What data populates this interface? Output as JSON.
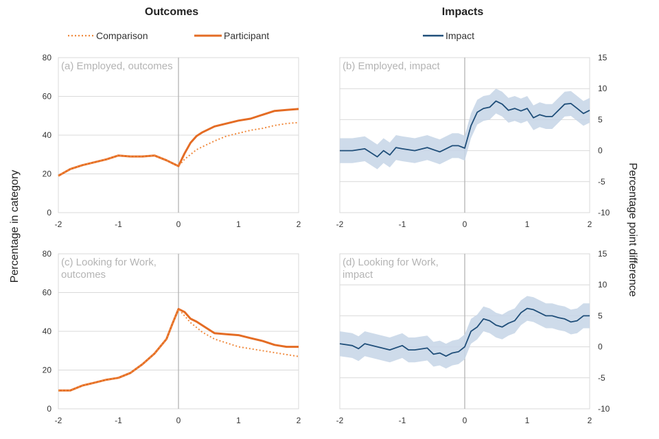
{
  "headings": {
    "outcomes": "Outcomes",
    "impacts": "Impacts"
  },
  "legend": {
    "comparison": "Comparison",
    "participant": "Participant",
    "impact": "Impact"
  },
  "axis_labels": {
    "left": "Percentage in category",
    "right": "Percentage point difference"
  },
  "colors": {
    "participant": "#e46c24",
    "comparison": "#f08a3e",
    "impact": "#1f4e79",
    "band": "#c5d5e6",
    "grid": "#d9d9d9",
    "zero": "#b3b3b3"
  },
  "chart_data": [
    {
      "type": "line",
      "title": "(a) Employed, outcomes",
      "xlim": [
        -2,
        2
      ],
      "xticks": [
        -2,
        -1,
        0,
        1,
        2
      ],
      "ylim": [
        0,
        80
      ],
      "yticks": [
        0,
        20,
        40,
        60,
        80
      ],
      "grid": true,
      "yaxis_side": "left",
      "series": [
        {
          "name": "Participant",
          "style": "solid",
          "x": [
            -2,
            -1.8,
            -1.6,
            -1.4,
            -1.2,
            -1,
            -0.8,
            -0.6,
            -0.4,
            -0.2,
            0,
            0.1,
            0.2,
            0.3,
            0.4,
            0.6,
            0.8,
            1,
            1.2,
            1.4,
            1.6,
            1.8,
            2
          ],
          "y": [
            19,
            22.5,
            24.5,
            26,
            27.5,
            29.5,
            29,
            29,
            29.5,
            27,
            24,
            30.5,
            36,
            39.5,
            41.5,
            44.5,
            46,
            47.5,
            48.5,
            50.5,
            52.5,
            53,
            53.5
          ]
        },
        {
          "name": "Comparison",
          "style": "dotted",
          "x": [
            -2,
            -1.8,
            -1.6,
            -1.4,
            -1.2,
            -1,
            -0.8,
            -0.6,
            -0.4,
            -0.2,
            0,
            0.1,
            0.2,
            0.3,
            0.4,
            0.6,
            0.8,
            1,
            1.2,
            1.4,
            1.6,
            1.8,
            2
          ],
          "y": [
            19,
            22.5,
            24.5,
            26,
            27.5,
            29.5,
            29,
            29,
            29.5,
            27,
            24,
            27.5,
            30,
            32.5,
            34,
            37,
            39.5,
            41,
            42.5,
            43.5,
            45,
            46,
            46.5
          ]
        }
      ]
    },
    {
      "type": "line",
      "title": "(b) Employed, impact",
      "xlim": [
        -2,
        2
      ],
      "xticks": [
        -2,
        -1,
        0,
        1,
        2
      ],
      "ylim": [
        -10,
        15
      ],
      "yticks": [
        -10,
        -5,
        0,
        5,
        10,
        15
      ],
      "grid": true,
      "yaxis_side": "right",
      "series": [
        {
          "name": "Impact",
          "style": "solid",
          "band": true,
          "x": [
            -2,
            -1.8,
            -1.6,
            -1.4,
            -1.3,
            -1.2,
            -1.1,
            -1,
            -0.8,
            -0.6,
            -0.4,
            -0.2,
            -0.1,
            0,
            0.1,
            0.2,
            0.3,
            0.4,
            0.5,
            0.6,
            0.7,
            0.8,
            0.9,
            1,
            1.1,
            1.2,
            1.3,
            1.4,
            1.6,
            1.7,
            1.8,
            1.9,
            2
          ],
          "y": [
            0,
            0,
            0.3,
            -1,
            0,
            -0.7,
            0.5,
            0.3,
            0,
            0.5,
            -0.2,
            0.8,
            0.8,
            0.4,
            4,
            6.2,
            6.8,
            7,
            8,
            7.5,
            6.5,
            6.8,
            6.4,
            6.8,
            5.3,
            5.8,
            5.5,
            5.5,
            7.5,
            7.6,
            6.8,
            6,
            6.5
          ],
          "lower": [
            -2,
            -2,
            -1.7,
            -3,
            -2,
            -2.7,
            -1.5,
            -1.7,
            -2,
            -1.5,
            -2.2,
            -1.2,
            -1.2,
            -1.6,
            2,
            4.2,
            4.8,
            5,
            6,
            5.5,
            4.5,
            4.8,
            4.4,
            4.8,
            3.3,
            3.8,
            3.5,
            3.5,
            5.5,
            5.6,
            4.8,
            4,
            4.5
          ],
          "upper": [
            2,
            2,
            2.3,
            1,
            2,
            1.3,
            2.5,
            2.3,
            2,
            2.5,
            1.8,
            2.8,
            2.8,
            2.4,
            6,
            8.2,
            8.8,
            9,
            10,
            9.5,
            8.5,
            8.8,
            8.4,
            8.8,
            7.3,
            7.8,
            7.5,
            7.5,
            9.5,
            9.6,
            8.8,
            8,
            8.5
          ]
        }
      ]
    },
    {
      "type": "line",
      "title": "(c) Looking for Work, outcomes",
      "xlim": [
        -2,
        2
      ],
      "xticks": [
        -2,
        -1,
        0,
        1,
        2
      ],
      "ylim": [
        0,
        80
      ],
      "yticks": [
        0,
        20,
        40,
        60,
        80
      ],
      "grid": true,
      "yaxis_side": "left",
      "series": [
        {
          "name": "Participant",
          "style": "solid",
          "x": [
            -2,
            -1.8,
            -1.6,
            -1.4,
            -1.2,
            -1,
            -0.8,
            -0.6,
            -0.4,
            -0.2,
            -0.1,
            0,
            0.1,
            0.2,
            0.3,
            0.4,
            0.6,
            0.8,
            1,
            1.2,
            1.4,
            1.6,
            1.8,
            2
          ],
          "y": [
            9.5,
            9.5,
            12,
            13.5,
            15,
            16,
            18.5,
            23,
            28.5,
            36,
            44,
            51.5,
            50,
            46.5,
            45,
            43,
            39,
            38.5,
            38,
            36.5,
            35,
            33,
            32,
            32
          ]
        },
        {
          "name": "Comparison",
          "style": "dotted",
          "x": [
            -2,
            -1.8,
            -1.6,
            -1.4,
            -1.2,
            -1,
            -0.8,
            -0.6,
            -0.4,
            -0.2,
            -0.1,
            0,
            0.1,
            0.2,
            0.3,
            0.4,
            0.6,
            0.8,
            1,
            1.2,
            1.4,
            1.6,
            1.8,
            2
          ],
          "y": [
            9.5,
            9.5,
            12,
            13.5,
            15,
            16,
            18.5,
            23,
            28.5,
            36,
            44,
            51.5,
            48,
            44.5,
            42,
            39.5,
            36,
            34,
            32,
            31,
            30,
            29,
            28,
            27
          ]
        }
      ]
    },
    {
      "type": "line",
      "title": "(d) Looking for Work, impact",
      "xlim": [
        -2,
        2
      ],
      "xticks": [
        -2,
        -1,
        0,
        1,
        2
      ],
      "ylim": [
        -10,
        15
      ],
      "yticks": [
        -10,
        -5,
        0,
        5,
        10,
        15
      ],
      "grid": true,
      "yaxis_side": "right",
      "series": [
        {
          "name": "Impact",
          "style": "solid",
          "band": true,
          "x": [
            -2,
            -1.8,
            -1.7,
            -1.6,
            -1.4,
            -1.2,
            -1,
            -0.9,
            -0.8,
            -0.6,
            -0.5,
            -0.4,
            -0.3,
            -0.2,
            -0.1,
            0,
            0.1,
            0.2,
            0.3,
            0.4,
            0.5,
            0.6,
            0.7,
            0.8,
            0.9,
            1,
            1.1,
            1.2,
            1.3,
            1.4,
            1.5,
            1.6,
            1.7,
            1.8,
            1.9,
            2
          ],
          "y": [
            0.5,
            0.2,
            -0.3,
            0.5,
            0,
            -0.5,
            0.2,
            -0.5,
            -0.5,
            -0.2,
            -1.2,
            -1,
            -1.5,
            -1,
            -0.8,
            0,
            2.5,
            3.2,
            4.5,
            4.2,
            3.5,
            3.2,
            3.8,
            4.2,
            5.5,
            6.2,
            6,
            5.5,
            5,
            5,
            4.7,
            4.5,
            4,
            4.2,
            5,
            5
          ],
          "lower": [
            -1.5,
            -1.8,
            -2.3,
            -1.5,
            -2,
            -2.5,
            -1.8,
            -2.5,
            -2.5,
            -2.2,
            -3.2,
            -3,
            -3.5,
            -3,
            -2.8,
            -2,
            0.5,
            1.2,
            2.5,
            2.2,
            1.5,
            1.2,
            1.8,
            2.2,
            3.5,
            4.2,
            4,
            3.5,
            3,
            3,
            2.7,
            2.5,
            2,
            2.2,
            3,
            3
          ],
          "upper": [
            2.5,
            2.2,
            1.7,
            2.5,
            2,
            1.5,
            2.2,
            1.5,
            1.5,
            1.8,
            0.8,
            1,
            0.5,
            1,
            1.2,
            2,
            4.5,
            5.2,
            6.5,
            6.2,
            5.5,
            5.2,
            5.8,
            6.2,
            7.5,
            8.2,
            8,
            7.5,
            7,
            7,
            6.7,
            6.5,
            6,
            6.2,
            7,
            7
          ]
        }
      ]
    }
  ]
}
